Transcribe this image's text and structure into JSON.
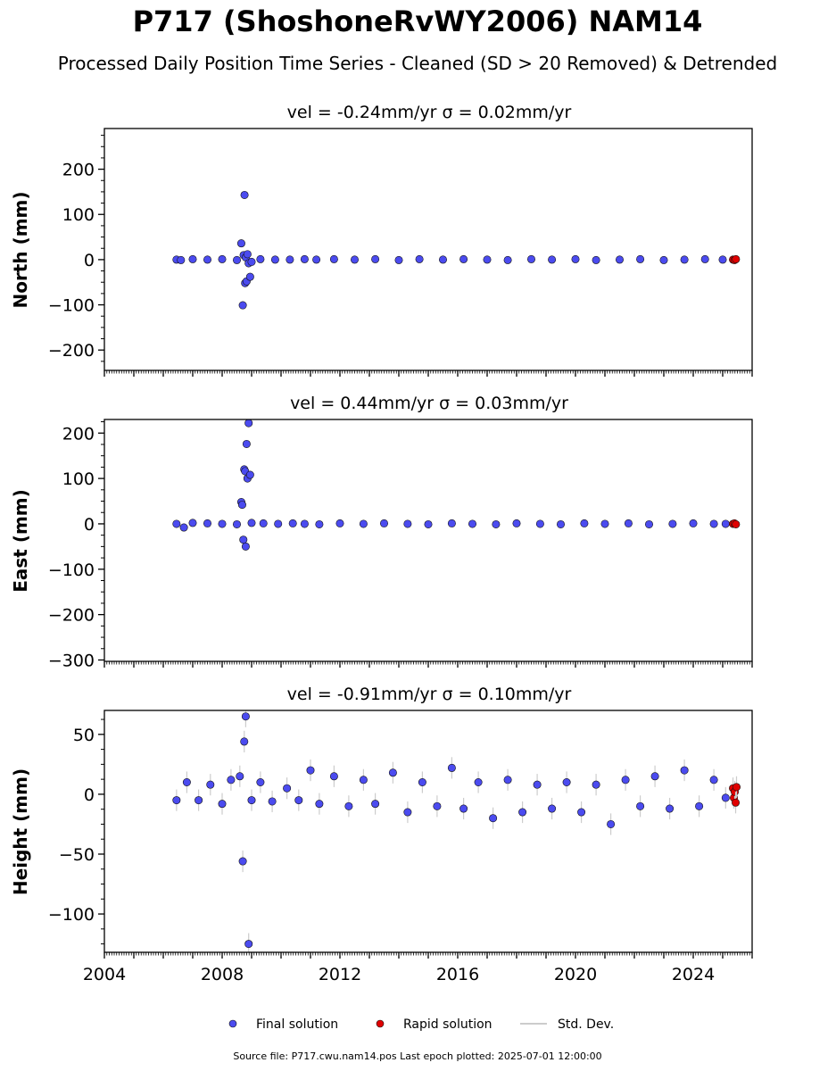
{
  "figure": {
    "title": "P717 (ShoshoneRvWY2006) NAM14",
    "subtitle": "Processed Daily Position Time Series - Cleaned (SD > 20 Removed) & Detrended",
    "footer": "Source file: P717.cwu.nam14.pos  Last epoch plotted: 2025-07-01 12:00:00"
  },
  "legend": {
    "final_label": "Final solution",
    "rapid_label": "Rapid solution",
    "std_label": "Std. Dev."
  },
  "colors": {
    "final": "#4b4bef",
    "final_edge": "#1a1a4a",
    "rapid": "#e00000",
    "std": "#cccccc",
    "axis": "#000000"
  },
  "chart_data": [
    {
      "type": "scatter",
      "panel": "north",
      "title": "vel = -0.24mm/yr   σ = 0.02mm/yr",
      "ylabel": "North (mm)",
      "xlim": [
        2004.0,
        2026.0
      ],
      "ylim": [
        -245,
        290
      ],
      "yticks": [
        -200,
        -100,
        0,
        100,
        200
      ],
      "ytick_labels": [
        "−200",
        "−100",
        "0",
        "100",
        "200"
      ],
      "grid": false,
      "series": [
        {
          "name": "Final solution",
          "x": [
            2006.45,
            2006.6,
            2007.0,
            2007.5,
            2008.0,
            2008.5,
            2008.65,
            2008.7,
            2008.73,
            2008.76,
            2008.78,
            2008.8,
            2008.83,
            2008.86,
            2008.9,
            2008.95,
            2009.0,
            2009.3,
            2009.8,
            2010.3,
            2010.8,
            2011.2,
            2011.8,
            2012.5,
            2013.2,
            2014.0,
            2014.7,
            2015.5,
            2016.2,
            2017.0,
            2017.7,
            2018.5,
            2019.2,
            2020.0,
            2020.7,
            2021.5,
            2022.2,
            2023.0,
            2023.7,
            2024.4,
            2025.0
          ],
          "y": [
            0,
            -1,
            1,
            0,
            1,
            -1,
            36,
            -101,
            10,
            143,
            -52,
            5,
            -48,
            12,
            -8,
            -38,
            -5,
            1,
            0,
            0,
            1,
            0,
            1,
            0,
            1,
            -1,
            1,
            0,
            1,
            0,
            -1,
            1,
            0,
            1,
            -1,
            0,
            1,
            -1,
            0,
            1,
            0
          ]
        },
        {
          "name": "Rapid solution",
          "x": [
            2025.35,
            2025.4,
            2025.45
          ],
          "y": [
            0,
            -1,
            1
          ]
        }
      ]
    },
    {
      "type": "scatter",
      "panel": "east",
      "title": "vel = 0.44mm/yr   σ = 0.03mm/yr",
      "ylabel": "East (mm)",
      "xlim": [
        2004.0,
        2026.0
      ],
      "ylim": [
        -303,
        230
      ],
      "yticks": [
        -300,
        -200,
        -100,
        0,
        100,
        200
      ],
      "ytick_labels": [
        "−300",
        "−200",
        "−100",
        "0",
        "100",
        "200"
      ],
      "grid": false,
      "series": [
        {
          "name": "Final solution",
          "x": [
            2006.45,
            2006.7,
            2007.0,
            2007.5,
            2008.0,
            2008.5,
            2008.65,
            2008.68,
            2008.72,
            2008.75,
            2008.78,
            2008.8,
            2008.83,
            2008.86,
            2008.9,
            2008.95,
            2009.0,
            2009.4,
            2009.9,
            2010.4,
            2010.8,
            2011.3,
            2012.0,
            2012.8,
            2013.5,
            2014.3,
            2015.0,
            2015.8,
            2016.5,
            2017.3,
            2018.0,
            2018.8,
            2019.5,
            2020.3,
            2021.0,
            2021.8,
            2022.5,
            2023.3,
            2024.0,
            2024.7,
            2025.1
          ],
          "y": [
            0,
            -8,
            2,
            1,
            0,
            -1,
            48,
            42,
            -35,
            120,
            116,
            -50,
            176,
            100,
            222,
            108,
            2,
            1,
            0,
            1,
            0,
            -1,
            1,
            0,
            1,
            0,
            -1,
            1,
            0,
            -1,
            1,
            0,
            -1,
            1,
            0,
            1,
            -1,
            0,
            1,
            0,
            0
          ]
        },
        {
          "name": "Rapid solution",
          "x": [
            2025.35,
            2025.4,
            2025.45
          ],
          "y": [
            0,
            1,
            -1
          ]
        }
      ]
    },
    {
      "type": "scatter",
      "panel": "height",
      "title": "vel = -0.91mm/yr   σ = 0.10mm/yr",
      "ylabel": "Height (mm)",
      "xlim": [
        2004.0,
        2026.0
      ],
      "ylim": [
        -132,
        70
      ],
      "yticks": [
        -100,
        -50,
        0,
        50
      ],
      "ytick_labels": [
        "−100",
        "−50",
        "0",
        "50"
      ],
      "xticks": [
        2004,
        2008,
        2012,
        2016,
        2020,
        2024
      ],
      "xtick_labels": [
        "2004",
        "2008",
        "2012",
        "2016",
        "2020",
        "2024"
      ],
      "grid": false,
      "series": [
        {
          "name": "Final solution",
          "x": [
            2006.45,
            2006.8,
            2007.2,
            2007.6,
            2008.0,
            2008.3,
            2008.6,
            2008.7,
            2008.75,
            2008.8,
            2008.9,
            2009.0,
            2009.3,
            2009.7,
            2010.2,
            2010.6,
            2011.0,
            2011.3,
            2011.8,
            2012.3,
            2012.8,
            2013.2,
            2013.8,
            2014.3,
            2014.8,
            2015.3,
            2015.8,
            2016.2,
            2016.7,
            2017.2,
            2017.7,
            2018.2,
            2018.7,
            2019.2,
            2019.7,
            2020.2,
            2020.7,
            2021.2,
            2021.7,
            2022.2,
            2022.7,
            2023.2,
            2023.7,
            2024.2,
            2024.7,
            2025.1
          ],
          "y": [
            -5,
            10,
            -5,
            8,
            -8,
            12,
            15,
            -56,
            44,
            65,
            -125,
            -5,
            10,
            -6,
            5,
            -5,
            20,
            -8,
            15,
            -10,
            12,
            -8,
            18,
            -15,
            10,
            -10,
            22,
            -12,
            10,
            -20,
            12,
            -15,
            8,
            -12,
            10,
            -15,
            8,
            -25,
            12,
            -10,
            15,
            -12,
            20,
            -10,
            12,
            -3
          ]
        },
        {
          "name": "Rapid solution",
          "x": [
            2025.35,
            2025.38,
            2025.41,
            2025.44,
            2025.47
          ],
          "y": [
            5,
            -3,
            2,
            -7,
            6
          ]
        }
      ]
    }
  ]
}
